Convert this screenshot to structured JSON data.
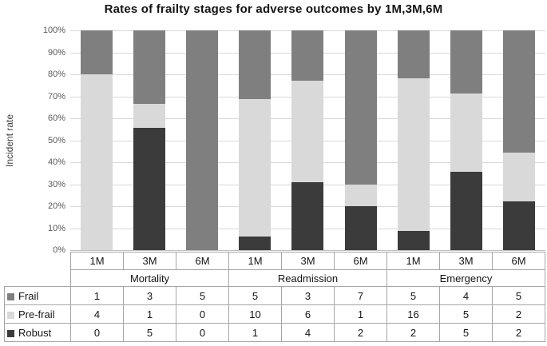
{
  "chart_data": {
    "type": "bar",
    "variant": "100-percent-stacked-column",
    "title": "Rates of frailty stages for adverse outcomes by 1M,3M,6M",
    "ylabel": "Incident rate",
    "ylim": [
      0,
      100
    ],
    "y_tick_labels": [
      "100%",
      "90%",
      "80%",
      "70%",
      "60%",
      "50%",
      "40%",
      "30%",
      "20%",
      "10%",
      "0%"
    ],
    "grid": true,
    "legend_position": "table-left",
    "groups": [
      "Mortality",
      "Readmission",
      "Emergency"
    ],
    "categories": [
      "1M",
      "3M",
      "6M",
      "1M",
      "3M",
      "6M",
      "1M",
      "3M",
      "6M"
    ],
    "series": [
      {
        "name": "Frail",
        "color": "#7f7f7f",
        "values": [
          1,
          3,
          5,
          5,
          3,
          7,
          5,
          4,
          5
        ]
      },
      {
        "name": "Pre-frail",
        "color": "#d9d9d9",
        "values": [
          4,
          1,
          0,
          10,
          6,
          1,
          16,
          5,
          2
        ]
      },
      {
        "name": "Robust",
        "color": "#3b3b3b",
        "values": [
          0,
          5,
          0,
          1,
          4,
          2,
          2,
          5,
          2
        ]
      }
    ],
    "stack_order_top_to_bottom": [
      "Frail",
      "Pre-frail",
      "Robust"
    ]
  },
  "colors": {
    "background": "#ffffff",
    "grid": "#d9d9d9",
    "axis_text": "#595959",
    "title_text": "#141414",
    "table_border": "#a6a6a6"
  }
}
